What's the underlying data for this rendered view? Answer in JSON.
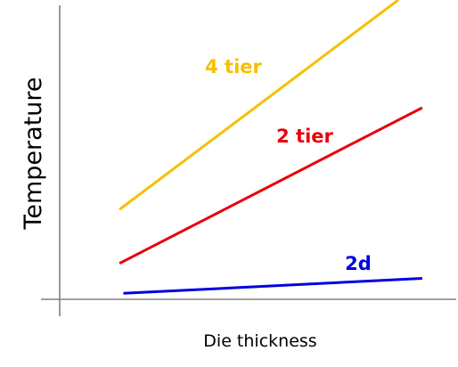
{
  "chart_data": {
    "type": "line",
    "title": "",
    "xlabel": "Die thickness",
    "ylabel": "Temperature",
    "xlim": [
      0,
      1
    ],
    "ylim": [
      0,
      1
    ],
    "grid": false,
    "series": [
      {
        "name": "4 tier",
        "color": "#f5c000",
        "x": [
          0.15,
          0.85
        ],
        "y": [
          0.3,
          1.0
        ]
      },
      {
        "name": "2 tier",
        "color": "#e8000b",
        "x": [
          0.15,
          0.91
        ],
        "y": [
          0.12,
          0.64
        ]
      },
      {
        "name": "2d",
        "color": "#0000e0",
        "x": [
          0.16,
          0.91
        ],
        "y": [
          0.02,
          0.07
        ]
      }
    ]
  }
}
